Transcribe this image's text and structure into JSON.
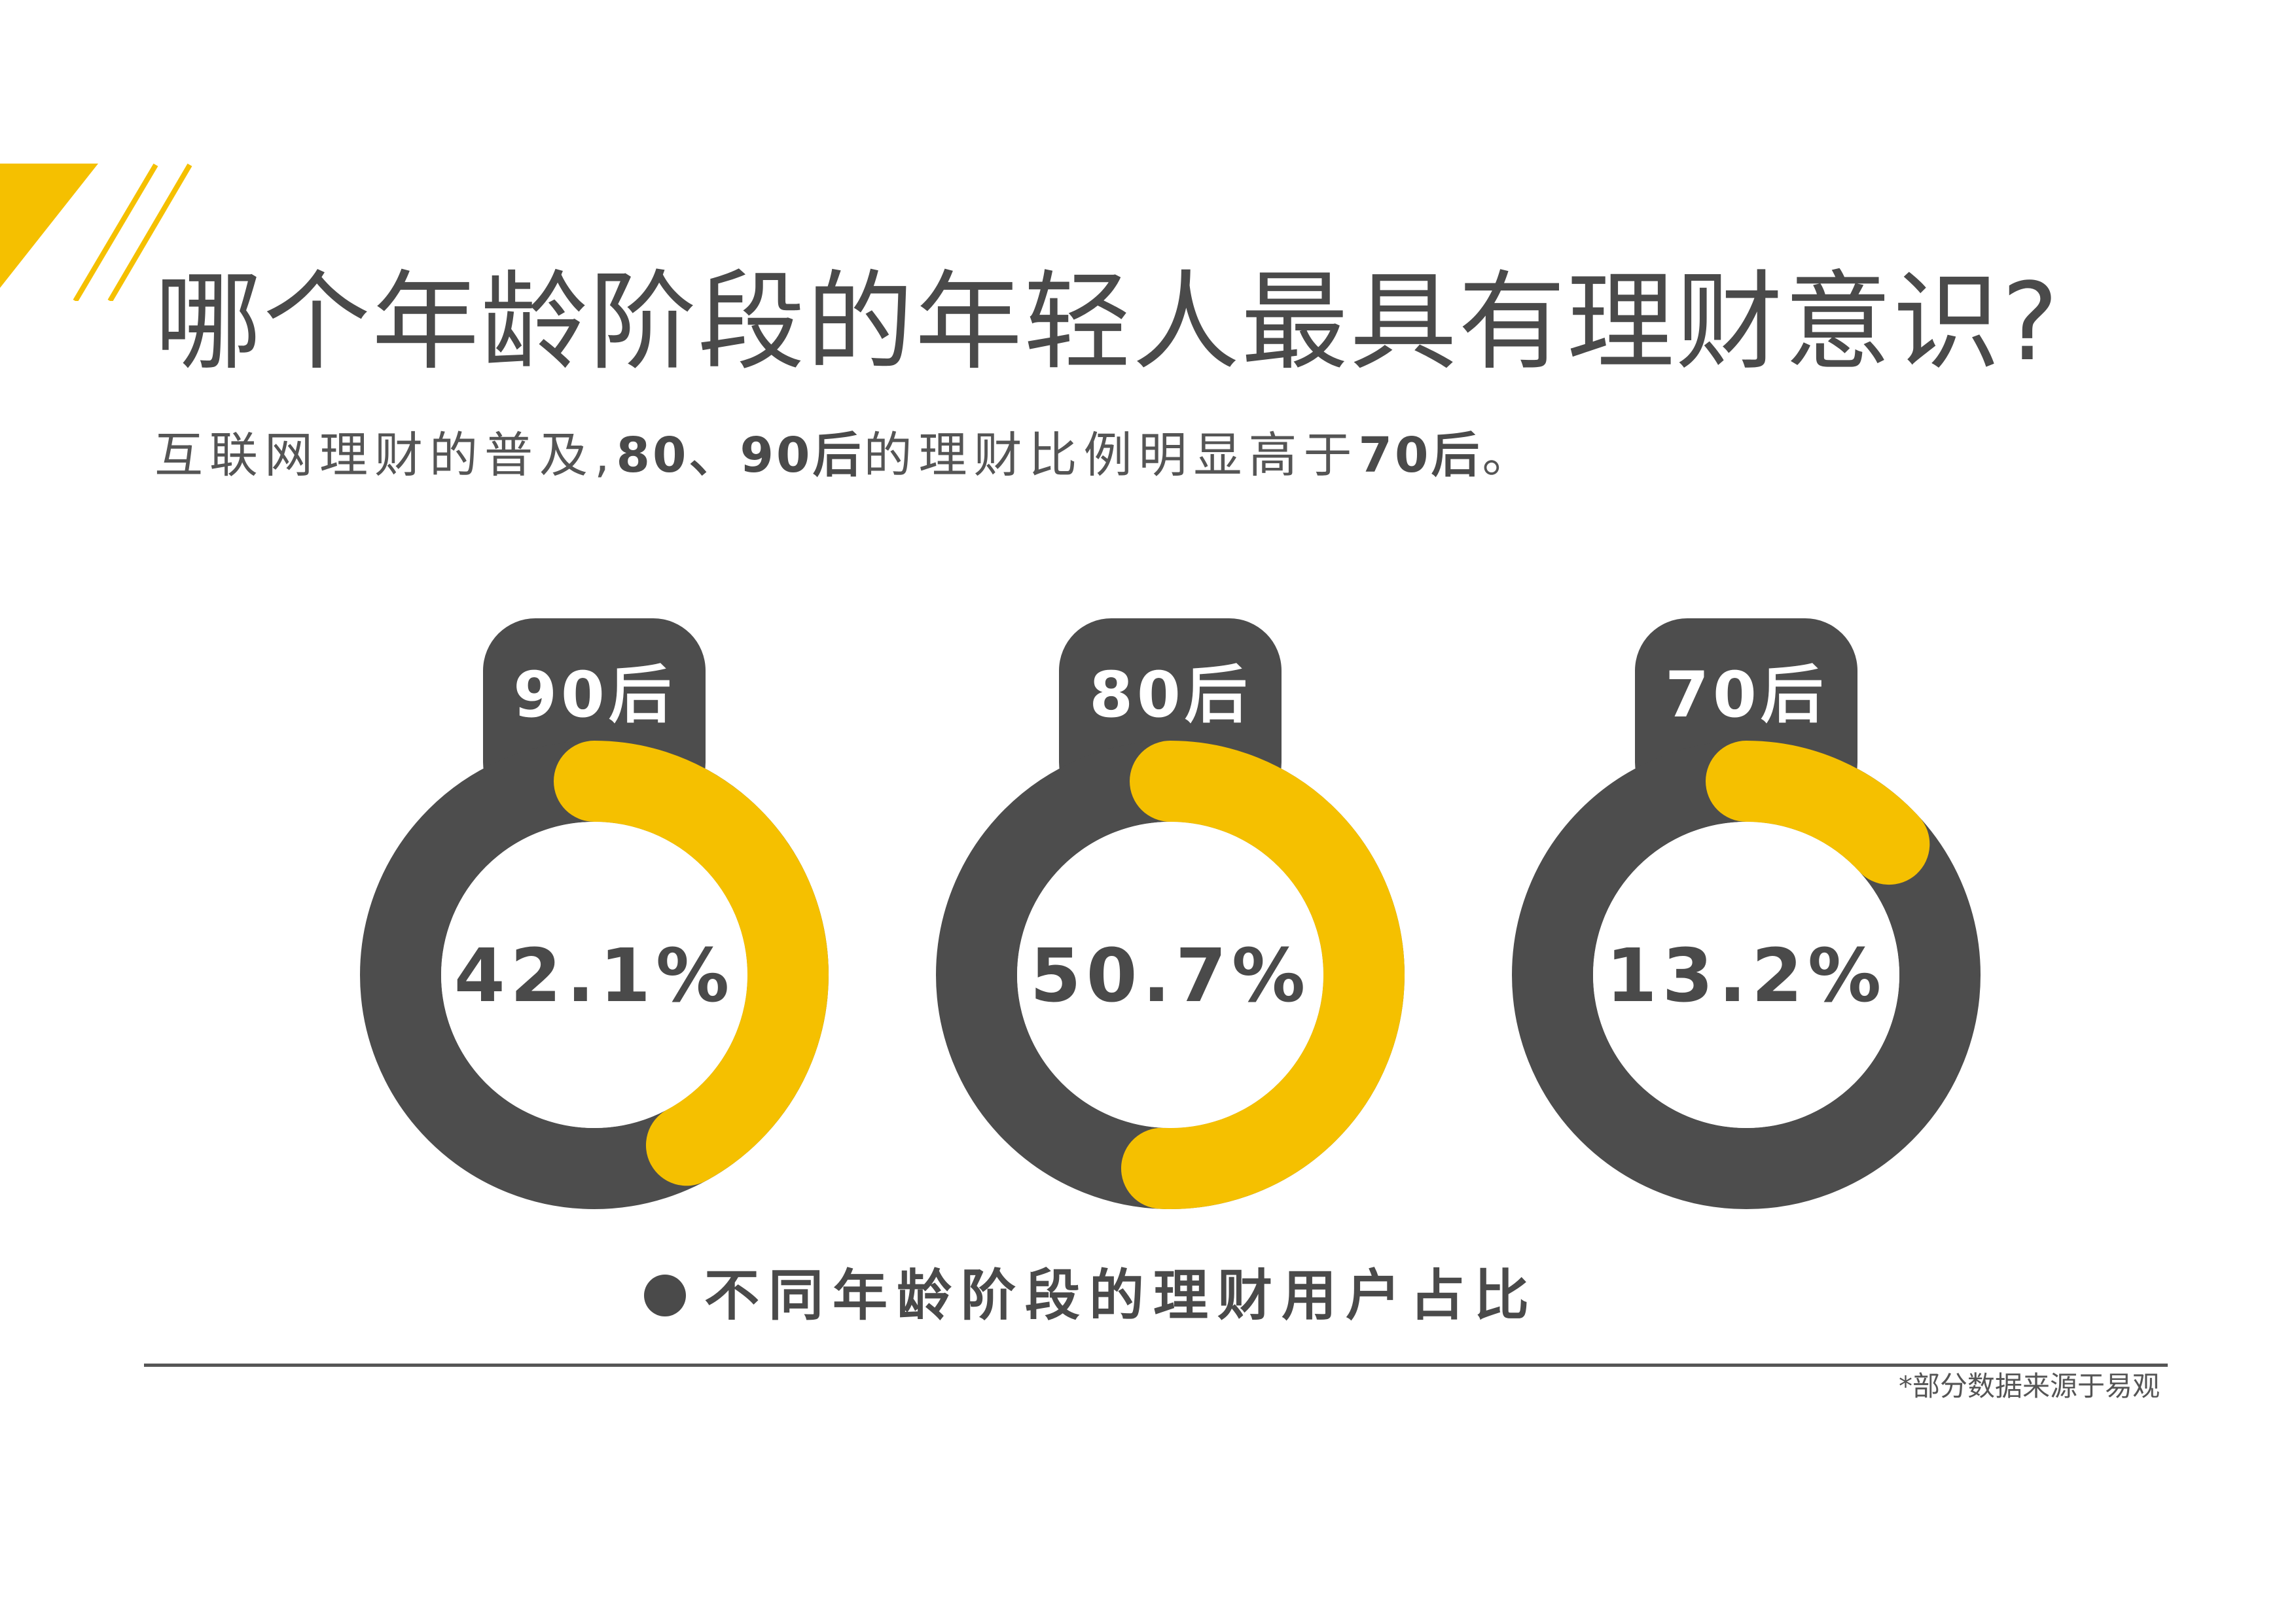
{
  "title": "哪个年龄阶段的年轻人最具有理财意识?",
  "subtitle": {
    "part1": "互联网理财的普及,",
    "part2": "80、90后",
    "part3": "的理财比例明显高于",
    "part4": "70后",
    "part5": "。"
  },
  "colors": {
    "accent": "#F5C000",
    "dark": "#4D4D4D",
    "text": "#4A4A4A"
  },
  "chart_data": {
    "type": "pie",
    "categories": [
      "90后",
      "80后",
      "70后"
    ],
    "values": [
      42.1,
      50.7,
      13.2
    ],
    "value_labels": [
      "42.1%",
      "50.7%",
      "13.2%"
    ],
    "unit": "%",
    "title": "不同年龄阶段的理财用户占比"
  },
  "source_note": "*部分数据来源于易观"
}
